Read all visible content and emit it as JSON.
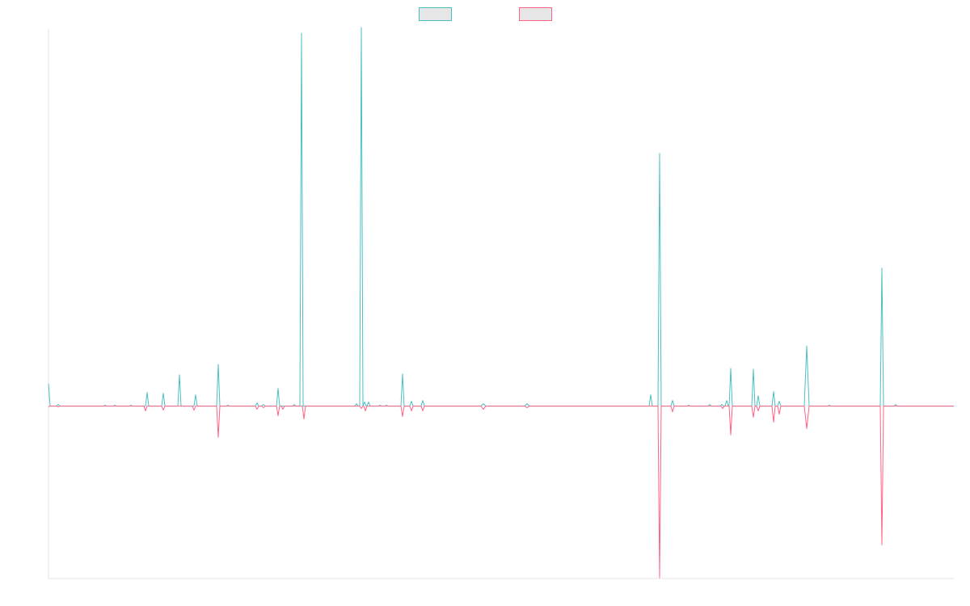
{
  "chart_data": {
    "type": "line",
    "title": "",
    "xlabel": "",
    "ylabel": "",
    "xlim": [
      0,
      1120
    ],
    "ylim": [
      -215,
      470
    ],
    "grid": false,
    "legend_position": "top-center",
    "series": [
      {
        "name": "",
        "color": "#4bc0c0",
        "baseline": 0,
        "peaks": [
          [
            0,
            28,
            2
          ],
          [
            12,
            2,
            2
          ],
          [
            70,
            1,
            2
          ],
          [
            82,
            1,
            2
          ],
          [
            102,
            1,
            2
          ],
          [
            122,
            17,
            2
          ],
          [
            142,
            16,
            2
          ],
          [
            162,
            39,
            2
          ],
          [
            182,
            14,
            2
          ],
          [
            210,
            52,
            2
          ],
          [
            222,
            1,
            2
          ],
          [
            258,
            4,
            2
          ],
          [
            266,
            2,
            2
          ],
          [
            284,
            22,
            2
          ],
          [
            304,
            2,
            2
          ],
          [
            313,
            465,
            2
          ],
          [
            381,
            3,
            2
          ],
          [
            387,
            472,
            2
          ],
          [
            391,
            5,
            2
          ],
          [
            396,
            5,
            2
          ],
          [
            410,
            1,
            2
          ],
          [
            418,
            1,
            2
          ],
          [
            438,
            40,
            2
          ],
          [
            449,
            6,
            2
          ],
          [
            463,
            7,
            2
          ],
          [
            538,
            3,
            3
          ],
          [
            592,
            3,
            3
          ],
          [
            745,
            14,
            2
          ],
          [
            756,
            315,
            2
          ],
          [
            772,
            7,
            2
          ],
          [
            792,
            1,
            2
          ],
          [
            818,
            2,
            2
          ],
          [
            833,
            2,
            2
          ],
          [
            839,
            7,
            2
          ],
          [
            844,
            47,
            2
          ],
          [
            872,
            46,
            2
          ],
          [
            878,
            13,
            2
          ],
          [
            897,
            18,
            2
          ],
          [
            904,
            6,
            2
          ],
          [
            938,
            75,
            3
          ],
          [
            966,
            1,
            2
          ],
          [
            1031,
            172,
            2
          ],
          [
            1048,
            2,
            2
          ]
        ]
      },
      {
        "name": "",
        "color": "#ff6384",
        "baseline": 0,
        "peaks": [
          [
            0,
            -1,
            2
          ],
          [
            12,
            -1,
            2
          ],
          [
            120,
            -6,
            2
          ],
          [
            142,
            -5,
            2
          ],
          [
            180,
            -5,
            2
          ],
          [
            210,
            -39,
            2
          ],
          [
            258,
            -4,
            2
          ],
          [
            266,
            -2,
            2
          ],
          [
            284,
            -12,
            2
          ],
          [
            290,
            -4,
            2
          ],
          [
            316,
            -16,
            2
          ],
          [
            387,
            -3,
            2
          ],
          [
            392,
            -6,
            2
          ],
          [
            438,
            -13,
            2
          ],
          [
            449,
            -6,
            2
          ],
          [
            463,
            -6,
            2
          ],
          [
            538,
            -4,
            3
          ],
          [
            592,
            -2,
            3
          ],
          [
            756,
            -214,
            2
          ],
          [
            772,
            -7,
            2
          ],
          [
            834,
            -3,
            2
          ],
          [
            844,
            -36,
            2
          ],
          [
            878,
            -6,
            2
          ],
          [
            872,
            -14,
            2
          ],
          [
            897,
            -20,
            2
          ],
          [
            904,
            -10,
            2
          ],
          [
            938,
            -28,
            3
          ],
          [
            1031,
            -173,
            2
          ]
        ]
      }
    ]
  }
}
